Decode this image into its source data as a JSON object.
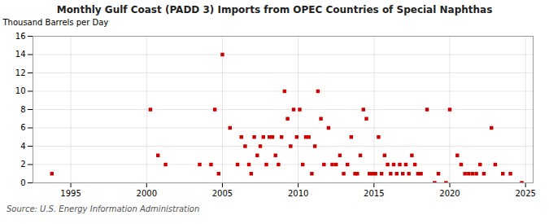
{
  "chart_data": {
    "type": "scatter",
    "title": "Monthly Gulf Coast (PADD 3) Imports from OPEC Countries of Special Naphthas",
    "ylabel": "Thousand Barrels per Day",
    "source": "Source: U.S. Energy Information Administration",
    "color": "#cc0000",
    "marker": "square",
    "grid": true,
    "xlim": [
      1992.5,
      2025.5
    ],
    "ylim": [
      0,
      16
    ],
    "xticks": [
      1995,
      2000,
      2005,
      2010,
      2015,
      2020,
      2025
    ],
    "yticks": [
      0,
      2,
      4,
      6,
      8,
      10,
      12,
      14,
      16
    ],
    "x": [
      1993.75,
      2000.25,
      2000.75,
      2001.25,
      2003.5,
      2004.25,
      2004.75,
      2004.5,
      2005.0,
      2005.5,
      2006.0,
      2006.25,
      2006.5,
      2006.75,
      2006.9,
      2007.1,
      2007.3,
      2007.5,
      2007.7,
      2007.9,
      2008.1,
      2008.3,
      2008.5,
      2008.7,
      2008.9,
      2009.1,
      2009.3,
      2009.5,
      2009.7,
      2009.9,
      2010.1,
      2010.3,
      2010.5,
      2010.7,
      2010.9,
      2011.1,
      2011.3,
      2011.5,
      2011.7,
      2012.0,
      2012.25,
      2012.5,
      2012.75,
      2013.0,
      2013.25,
      2013.5,
      2013.75,
      2013.9,
      2014.1,
      2014.3,
      2014.5,
      2014.7,
      2014.9,
      2015.1,
      2015.3,
      2015.5,
      2015.7,
      2015.9,
      2016.1,
      2016.3,
      2016.5,
      2016.7,
      2016.9,
      2017.1,
      2017.3,
      2017.5,
      2017.7,
      2017.9,
      2018.1,
      2018.5,
      2019.0,
      2019.25,
      2019.75,
      2020.0,
      2020.5,
      2020.75,
      2021.0,
      2021.25,
      2021.5,
      2021.75,
      2022.0,
      2022.25,
      2022.75,
      2023.0,
      2023.5,
      2024.0,
      2024.75
    ],
    "values": [
      1,
      8,
      3,
      2,
      2,
      2,
      1,
      8,
      14,
      6,
      2,
      5,
      4,
      2,
      1,
      5,
      3,
      4,
      5,
      2,
      5,
      5,
      3,
      2,
      5,
      10,
      7,
      4,
      8,
      5,
      8,
      2,
      5,
      5,
      1,
      4,
      10,
      7,
      2,
      6,
      2,
      2,
      3,
      1,
      2,
      5,
      1,
      1,
      3,
      8,
      7,
      1,
      1,
      1,
      5,
      1,
      3,
      2,
      1,
      2,
      1,
      2,
      1,
      2,
      1,
      3,
      2,
      1,
      1,
      8,
      0,
      1,
      0,
      8,
      3,
      2,
      1,
      1,
      1,
      1,
      2,
      1,
      6,
      2,
      1,
      1,
      0
    ]
  }
}
